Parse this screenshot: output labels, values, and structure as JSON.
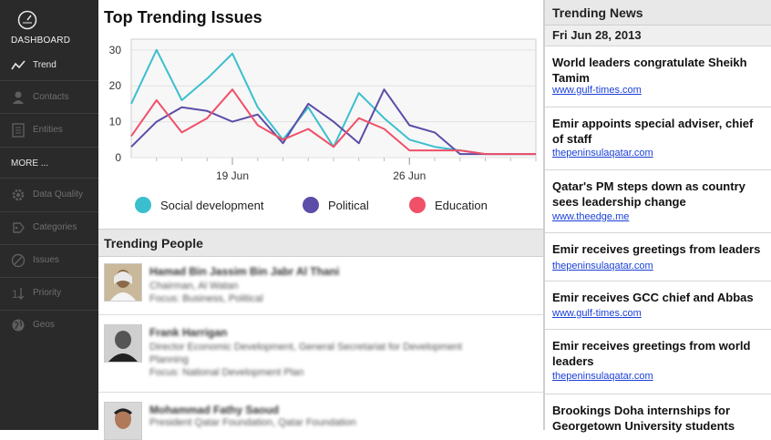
{
  "sidebar": {
    "dashboard_label": "DASHBOARD",
    "items": [
      {
        "label": "Trend",
        "icon": "trend-icon",
        "active": true
      },
      {
        "label": "Contacts",
        "icon": "contacts-icon",
        "active": false
      },
      {
        "label": "Entities",
        "icon": "entities-icon",
        "active": false
      }
    ],
    "more_label": "MORE ...",
    "more_items": [
      {
        "label": "Data Quality",
        "icon": "data-quality-icon"
      },
      {
        "label": "Categories",
        "icon": "categories-icon"
      },
      {
        "label": "Issues",
        "icon": "issues-icon"
      },
      {
        "label": "Priority",
        "icon": "priority-icon"
      },
      {
        "label": "Geos",
        "icon": "globe-icon"
      }
    ]
  },
  "chart_data": {
    "type": "line",
    "title": "Top Trending Issues",
    "xlabel": "",
    "ylabel": "",
    "ylim": [
      0,
      33
    ],
    "yticks": [
      0,
      10,
      20,
      30
    ],
    "xtick_labels": [
      "19 Jun",
      "26 Jun"
    ],
    "grid": true,
    "legend_position": "bottom",
    "series": [
      {
        "name": "Social development",
        "color": "#3bbfcf",
        "values": [
          15,
          30,
          16,
          22,
          29,
          14,
          5,
          14,
          3,
          18,
          11,
          5,
          3,
          2,
          1,
          1,
          1
        ]
      },
      {
        "name": "Political",
        "color": "#5b4da8",
        "values": [
          3,
          10,
          14,
          13,
          10,
          12,
          4,
          15,
          10,
          4,
          19,
          9,
          7,
          1,
          1,
          1,
          1
        ]
      },
      {
        "name": "Education",
        "color": "#f05068",
        "values": [
          6,
          16,
          7,
          11,
          19,
          9,
          5,
          8,
          3,
          11,
          8,
          2,
          2,
          2,
          1,
          1,
          1
        ]
      }
    ]
  },
  "people": {
    "section_title": "Trending People",
    "items": [
      {
        "name": "Hamad Bin Jassim Bin Jabr Al Thani",
        "lines": [
          "Chairman, Al Watan",
          "Focus: Business, Political"
        ]
      },
      {
        "name": "Frank Harrigan",
        "lines": [
          "Director Economic Development, General Secretariat for Development",
          "Planning",
          "Focus: National Development Plan"
        ]
      },
      {
        "name": "Mohammad Fathy Saoud",
        "lines": [
          "President Qatar Foundation, Qatar Foundation"
        ]
      }
    ]
  },
  "news": {
    "title": "Trending News",
    "date": "Fri Jun 28, 2013",
    "items": [
      {
        "headline": "World leaders congratulate Sheikh Tamim",
        "source": "www.gulf-times.com"
      },
      {
        "headline": "Emir appoints special adviser, chief of staff",
        "source": "thepeninsulaqatar.com"
      },
      {
        "headline": "Qatar's PM steps down as country sees leadership change",
        "source": "www.theedge.me"
      },
      {
        "headline": "Emir receives greetings from leaders",
        "source": "thepeninsulaqatar.com"
      },
      {
        "headline": "Emir receives GCC chief and Abbas",
        "source": "www.gulf-times.com"
      },
      {
        "headline": "Emir receives greetings from world leaders",
        "source": "thepeninsulaqatar.com"
      },
      {
        "headline": "Brookings Doha internships for Georgetown University students",
        "source": ""
      }
    ]
  }
}
